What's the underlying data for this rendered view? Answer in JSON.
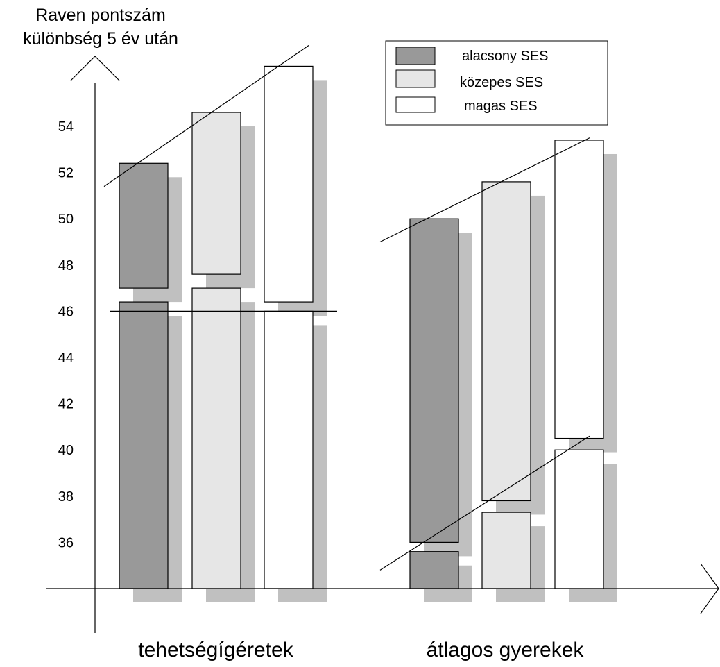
{
  "chart_data": {
    "type": "bar",
    "ylabel_lines": [
      "Raven pontszám",
      "különbség 5 év után"
    ],
    "y_ticks": [
      54,
      52,
      50,
      48,
      46,
      44,
      42,
      40,
      38,
      36
    ],
    "ylim": [
      33.9,
      57.4
    ],
    "categories": [
      "tehetségígéretek",
      "átlagos gyerekek"
    ],
    "legend": [
      {
        "label": "alacsony SES",
        "color": "#999999"
      },
      {
        "label": "közepes SES",
        "color": "#e6e6e6"
      },
      {
        "label": "magas SES",
        "color": "#ffffff"
      }
    ],
    "shadow_color": "#c0c0c0",
    "axis_color": "#000000",
    "series": [
      {
        "name": "alacsony SES",
        "group": "tehetségígéretek",
        "lower": [
          34,
          46.4
        ],
        "upper": [
          47,
          52.4
        ]
      },
      {
        "name": "közepes SES",
        "group": "tehetségígéretek",
        "lower": [
          34,
          47
        ],
        "upper": [
          47.6,
          54.6
        ]
      },
      {
        "name": "magas SES",
        "group": "tehetségígéretek",
        "lower": [
          34,
          46
        ],
        "upper": [
          46.4,
          56.6
        ]
      },
      {
        "name": "alacsony SES",
        "group": "átlagos gyerekek",
        "lower": [
          34,
          35.6
        ],
        "upper": [
          36,
          50
        ]
      },
      {
        "name": "közepes SES",
        "group": "átlagos gyerekek",
        "lower": [
          34,
          37.3
        ],
        "upper": [
          37.8,
          51.6
        ]
      },
      {
        "name": "magas SES",
        "group": "átlagos gyerekek",
        "lower": [
          34,
          40
        ],
        "upper": [
          40.5,
          53.4
        ]
      }
    ],
    "reference_line": 46,
    "trend_lines": [
      {
        "group": "tehetségígéretek",
        "from": [
          0,
          51.4
        ],
        "to": [
          1,
          57.5
        ]
      },
      {
        "group": "átlagos gyerekek",
        "from": [
          0,
          49
        ],
        "to": [
          1,
          53.5
        ]
      },
      {
        "group": "átlagos gyerekek",
        "from": [
          0,
          34.8
        ],
        "to": [
          1,
          40.6
        ]
      }
    ]
  }
}
